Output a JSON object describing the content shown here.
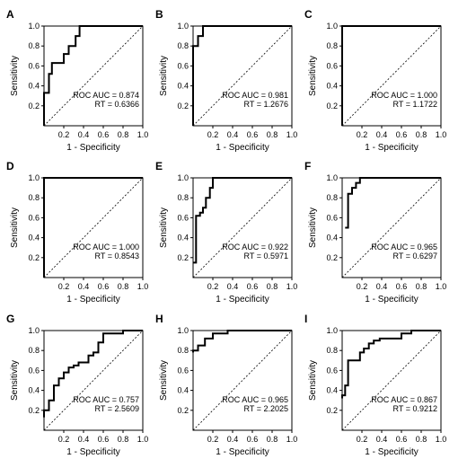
{
  "figure": {
    "xlabel": "1 - Specificity",
    "ylabel": "Sensitivity"
  },
  "chart_data": [
    {
      "panel": "A",
      "type": "line",
      "xlabel": "1 - Specificity",
      "ylabel": "Sensitivity",
      "xlim": [
        0,
        1.0
      ],
      "ylim": [
        0,
        1.0
      ],
      "xticks": [
        "0.2",
        "0.4",
        "0.6",
        "0.8",
        "1.0"
      ],
      "yticks": [
        "0.2",
        "0.4",
        "0.6",
        "0.8",
        "1.0"
      ],
      "annotations": [
        "ROC AUC = 0.874",
        "RT = 0.6366"
      ],
      "reference_line": true,
      "series": [
        {
          "x": [
            0,
            0,
            0.05,
            0.05,
            0.08,
            0.08,
            0.12,
            0.12,
            0.2,
            0.2,
            0.25,
            0.25,
            0.32,
            0.32,
            0.36,
            0.36,
            1.0
          ],
          "y": [
            0,
            0.33,
            0.33,
            0.52,
            0.52,
            0.63,
            0.63,
            0.63,
            0.63,
            0.72,
            0.72,
            0.8,
            0.8,
            0.9,
            0.9,
            1.0,
            1.0
          ]
        }
      ]
    },
    {
      "panel": "B",
      "type": "line",
      "xlabel": "1 - Specificity",
      "ylabel": "Sensitivity",
      "xlim": [
        0,
        1.0
      ],
      "ylim": [
        0,
        1.0
      ],
      "xticks": [
        "0.2",
        "0.4",
        "0.6",
        "0.8",
        "1.0"
      ],
      "yticks": [
        "0.2",
        "0.4",
        "0.6",
        "0.8",
        "1.0"
      ],
      "annotations": [
        "ROC AUC = 0.981",
        "RT = 1.2676"
      ],
      "reference_line": true,
      "series": [
        {
          "x": [
            0,
            0,
            0.05,
            0.05,
            0.1,
            0.1,
            1.0
          ],
          "y": [
            0,
            0.8,
            0.8,
            0.9,
            0.9,
            1.0,
            1.0
          ]
        }
      ]
    },
    {
      "panel": "C",
      "type": "line",
      "xlabel": "1 - Specificity",
      "ylabel": "Sensitivity",
      "xlim": [
        0,
        1.0
      ],
      "ylim": [
        0,
        1.0
      ],
      "xticks": [
        "0.2",
        "0.4",
        "0.6",
        "0.8",
        "1.0"
      ],
      "yticks": [
        "0.2",
        "0.4",
        "0.6",
        "0.8",
        "1.0"
      ],
      "annotations": [
        "ROC AUC = 1.000",
        "RT = 1.1722"
      ],
      "reference_line": true,
      "series": [
        {
          "x": [
            0,
            0,
            1.0
          ],
          "y": [
            0,
            1.0,
            1.0
          ]
        }
      ]
    },
    {
      "panel": "D",
      "type": "line",
      "xlabel": "1 - Specificity",
      "ylabel": "Sensitivity",
      "xlim": [
        0,
        1.0
      ],
      "ylim": [
        0,
        1.0
      ],
      "xticks": [
        "0.2",
        "0.4",
        "0.6",
        "0.8",
        "1.0"
      ],
      "yticks": [
        "0.2",
        "0.4",
        "0.6",
        "0.8",
        "1.0"
      ],
      "annotations": [
        "ROC AUC = 1.000",
        "RT = 0.8543"
      ],
      "reference_line": true,
      "series": [
        {
          "x": [
            0,
            0,
            1.0
          ],
          "y": [
            0,
            1.0,
            1.0
          ]
        }
      ]
    },
    {
      "panel": "E",
      "type": "line",
      "xlabel": "1 - Specificity",
      "ylabel": "Sensitivity",
      "xlim": [
        0,
        1.0
      ],
      "ylim": [
        0,
        1.0
      ],
      "xticks": [
        "0.2",
        "0.4",
        "0.6",
        "0.8",
        "1.0"
      ],
      "yticks": [
        "0.2",
        "0.4",
        "0.6",
        "0.8",
        "1.0"
      ],
      "annotations": [
        "ROC AUC = 0.922",
        "RT = 0.5971"
      ],
      "reference_line": true,
      "series": [
        {
          "x": [
            0,
            0.03,
            0.03,
            0.07,
            0.07,
            0.1,
            0.1,
            0.13,
            0.13,
            0.17,
            0.17,
            0.2,
            0.2,
            1.0
          ],
          "y": [
            0.15,
            0.15,
            0.62,
            0.62,
            0.65,
            0.65,
            0.7,
            0.7,
            0.8,
            0.8,
            0.9,
            0.9,
            1.0,
            1.0
          ]
        }
      ]
    },
    {
      "panel": "F",
      "type": "line",
      "xlabel": "1 - Specificity",
      "ylabel": "Sensitivity",
      "xlim": [
        0,
        1.0
      ],
      "ylim": [
        0,
        1.0
      ],
      "xticks": [
        "0.2",
        "0.4",
        "0.6",
        "0.8",
        "1.0"
      ],
      "yticks": [
        "0.2",
        "0.4",
        "0.6",
        "0.8",
        "1.0"
      ],
      "annotations": [
        "ROC AUC = 0.965",
        "RT = 0.6297"
      ],
      "reference_line": true,
      "series": [
        {
          "x": [
            0.03,
            0.03,
            0.06,
            0.06,
            0.1,
            0.1,
            0.14,
            0.14,
            0.18,
            0.18,
            1.0
          ],
          "y": [
            0.5,
            0.5,
            0.5,
            0.84,
            0.84,
            0.9,
            0.9,
            0.95,
            0.95,
            1.0,
            1.0
          ]
        }
      ]
    },
    {
      "panel": "G",
      "type": "line",
      "xlabel": "1 - Specificity",
      "ylabel": "Sensitivity",
      "xlim": [
        0,
        1.0
      ],
      "ylim": [
        0,
        1.0
      ],
      "xticks": [
        "0.2",
        "0.4",
        "0.6",
        "0.8",
        "1.0"
      ],
      "yticks": [
        "0.2",
        "0.4",
        "0.6",
        "0.8",
        "1.0"
      ],
      "annotations": [
        "ROC AUC = 0.757",
        "RT = 2.5609"
      ],
      "reference_line": true,
      "series": [
        {
          "x": [
            0,
            0,
            0.05,
            0.05,
            0.1,
            0.1,
            0.15,
            0.15,
            0.2,
            0.2,
            0.25,
            0.25,
            0.3,
            0.3,
            0.35,
            0.35,
            0.45,
            0.45,
            0.5,
            0.5,
            0.55,
            0.55,
            0.6,
            0.6,
            0.8,
            0.8,
            1.0
          ],
          "y": [
            0.13,
            0.2,
            0.2,
            0.3,
            0.3,
            0.45,
            0.45,
            0.52,
            0.52,
            0.58,
            0.58,
            0.63,
            0.63,
            0.65,
            0.65,
            0.68,
            0.68,
            0.75,
            0.75,
            0.78,
            0.78,
            0.88,
            0.88,
            0.97,
            0.97,
            1.0,
            1.0
          ]
        }
      ]
    },
    {
      "panel": "H",
      "type": "line",
      "xlabel": "1 - Specificity",
      "ylabel": "Sensitivity",
      "xlim": [
        0,
        1.0
      ],
      "ylim": [
        0,
        1.0
      ],
      "xticks": [
        "0.2",
        "0.4",
        "0.6",
        "0.8",
        "1.0"
      ],
      "yticks": [
        "0.2",
        "0.4",
        "0.6",
        "0.8",
        "1.0"
      ],
      "annotations": [
        "ROC AUC = 0.965",
        "RT = 2.2025"
      ],
      "reference_line": true,
      "series": [
        {
          "x": [
            0,
            0,
            0.05,
            0.05,
            0.12,
            0.12,
            0.2,
            0.2,
            0.35,
            0.35,
            1.0
          ],
          "y": [
            0.78,
            0.8,
            0.8,
            0.85,
            0.85,
            0.92,
            0.92,
            0.97,
            0.97,
            1.0,
            1.0
          ]
        }
      ]
    },
    {
      "panel": "I",
      "type": "line",
      "xlabel": "1 - Specificity",
      "ylabel": "Sensitivity",
      "xlim": [
        0,
        1.0
      ],
      "ylim": [
        0,
        1.0
      ],
      "xticks": [
        "0.2",
        "0.4",
        "0.6",
        "0.8",
        "1.0"
      ],
      "yticks": [
        "0.2",
        "0.4",
        "0.6",
        "0.8",
        "1.0"
      ],
      "annotations": [
        "ROC AUC = 0.867",
        "RT = 0.9212"
      ],
      "reference_line": true,
      "series": [
        {
          "x": [
            0,
            0,
            0.03,
            0.03,
            0.06,
            0.06,
            0.1,
            0.1,
            0.18,
            0.18,
            0.22,
            0.22,
            0.27,
            0.27,
            0.32,
            0.32,
            0.38,
            0.38,
            0.6,
            0.6,
            0.7,
            0.7,
            1.0
          ],
          "y": [
            0.32,
            0.35,
            0.35,
            0.45,
            0.45,
            0.7,
            0.7,
            0.7,
            0.7,
            0.78,
            0.78,
            0.82,
            0.82,
            0.87,
            0.87,
            0.9,
            0.9,
            0.92,
            0.92,
            0.97,
            0.97,
            1.0,
            1.0
          ]
        }
      ]
    }
  ]
}
